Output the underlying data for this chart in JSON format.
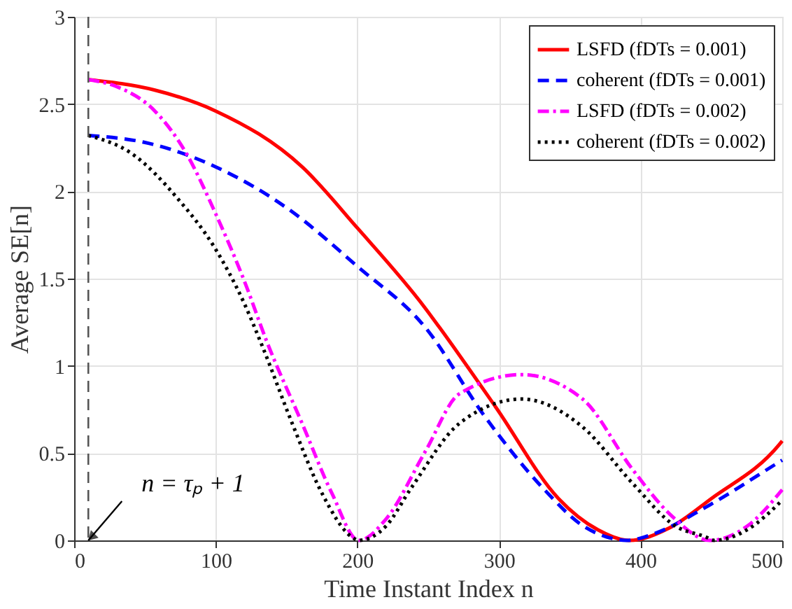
{
  "chart_data": {
    "type": "line",
    "xlabel": "Time Instant Index n",
    "ylabel": "Average SE[n]",
    "xlim": [
      0,
      500
    ],
    "xticks": [
      0,
      100,
      200,
      300,
      400,
      500
    ],
    "ylim": [
      0,
      3
    ],
    "yticks": [
      0,
      0.5,
      1,
      1.5,
      2,
      2.5,
      3
    ],
    "grid": true,
    "legend": "top right",
    "marker": "none",
    "series": [
      {
        "name": "LSFD (fDTs = 0.001)",
        "color": "#ff0000",
        "line_style": "solid",
        "x": [
          10,
          57,
          100,
          161,
          200,
          248,
          258,
          298,
          342,
          370,
          392,
          420,
          450,
          498,
          500
        ],
        "values": [
          2.64,
          2.58,
          2.46,
          2.14,
          1.79,
          1.33,
          1.22,
          0.76,
          0.24,
          0.06,
          0,
          0.07,
          0.24,
          0.55,
          0.57
        ]
      },
      {
        "name": "coherent (fDTs = 0.001)",
        "color": "#0000ff",
        "line_style": "dashed",
        "x": [
          10,
          50,
          100,
          151,
          200,
          248,
          290,
          331,
          360,
          376,
          390,
          410,
          446,
          498,
          500
        ],
        "values": [
          2.32,
          2.28,
          2.14,
          1.9,
          1.57,
          1.22,
          0.71,
          0.3,
          0.08,
          0.02,
          0,
          0.04,
          0.19,
          0.45,
          0.46
        ]
      },
      {
        "name": "LSFD (fDTs = 0.002)",
        "color": "#ff00ff",
        "line_style": "dashdot",
        "x": [
          10,
          30,
          57,
          79,
          100,
          120,
          136,
          161,
          182,
          201,
          220,
          248,
          272,
          316,
          359,
          394,
          422,
          449,
          475,
          500
        ],
        "values": [
          2.64,
          2.6,
          2.46,
          2.22,
          1.87,
          1.49,
          1.14,
          0.67,
          0.27,
          0,
          0.12,
          0.51,
          0.84,
          0.95,
          0.81,
          0.41,
          0.14,
          0,
          0.08,
          0.29
        ]
      },
      {
        "name": "coherent (fDTs = 0.002)",
        "color": "#000000",
        "line_style": "dotted",
        "x": [
          10,
          40,
          74,
          99,
          120,
          133,
          154,
          175,
          196,
          201,
          220,
          238,
          272,
          316,
          359,
          394,
          425,
          446,
          452,
          475,
          500
        ],
        "values": [
          2.32,
          2.22,
          1.95,
          1.68,
          1.36,
          1.11,
          0.67,
          0.27,
          0.02,
          0,
          0.08,
          0.3,
          0.67,
          0.81,
          0.65,
          0.33,
          0.08,
          0.02,
          0,
          0.06,
          0.23
        ]
      }
    ],
    "ref_lines": [
      {
        "axis": "x",
        "value": 10,
        "color": "#555555",
        "line_style": "dashed"
      }
    ],
    "annotations": [
      {
        "text": "n = τₚ + 1",
        "x": 10,
        "y": 0
      }
    ]
  }
}
